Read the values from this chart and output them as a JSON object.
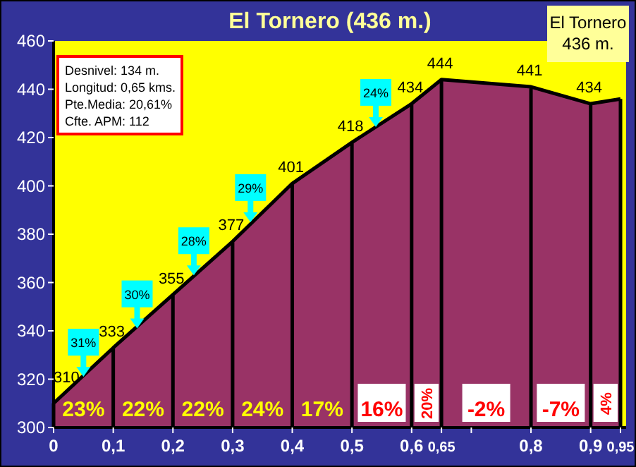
{
  "chart_data": {
    "type": "area",
    "title": "El Tornero (436 m.)",
    "subtitle": "El Tornero 436 m.",
    "x": [
      0,
      0.1,
      0.2,
      0.3,
      0.4,
      0.5,
      0.6,
      0.65,
      0.8,
      0.9,
      0.95
    ],
    "series": [
      {
        "color": "#993366",
        "values": [
          310,
          333,
          355,
          377,
          401,
          418,
          434,
          444,
          441,
          434,
          436
        ],
        "value_labels": [
          "310",
          "333",
          "355",
          "377",
          "401",
          "418",
          "434",
          "444",
          "441",
          "434",
          null
        ]
      }
    ],
    "xlim": [
      0,
      0.95
    ],
    "ylim": [
      300,
      460
    ],
    "xticks": [
      {
        "value": 0,
        "label": "0"
      },
      {
        "value": 0.1,
        "label": "0,1"
      },
      {
        "value": 0.2,
        "label": "0,2"
      },
      {
        "value": 0.3,
        "label": "0,3"
      },
      {
        "value": 0.4,
        "label": "0,4"
      },
      {
        "value": 0.5,
        "label": "0,5"
      },
      {
        "value": 0.6,
        "label": "0,6"
      },
      {
        "value": 0.65,
        "label": "0,65"
      },
      {
        "value": 0.7,
        "label": null
      },
      {
        "value": 0.8,
        "label": "0,8"
      },
      {
        "value": 0.9,
        "label": "0,9"
      },
      {
        "value": 0.95,
        "label": "0,95"
      }
    ],
    "yticks": [
      300,
      320,
      340,
      360,
      380,
      400,
      420,
      440,
      460
    ],
    "grid": "x",
    "annotations": [
      "Desnivel: 134 m.",
      "Longitud: 0,65 kms.",
      "Pte.Media: 20,61%",
      "Cfte. APM: 112",
      "23%",
      "22%",
      "22%",
      "24%",
      "17%",
      "16%",
      "20%",
      "-2%",
      "-7%",
      "4%",
      {
        "text": "31%",
        "x": 0.05,
        "y": 321
      },
      {
        "text": "30%",
        "x": 0.14,
        "y": 341
      },
      {
        "text": "28%",
        "x": 0.235,
        "y": 363
      },
      {
        "text": "29%",
        "x": 0.33,
        "y": 385
      },
      {
        "text": "24%",
        "x": 0.54,
        "y": 424.4
      }
    ]
  }
}
